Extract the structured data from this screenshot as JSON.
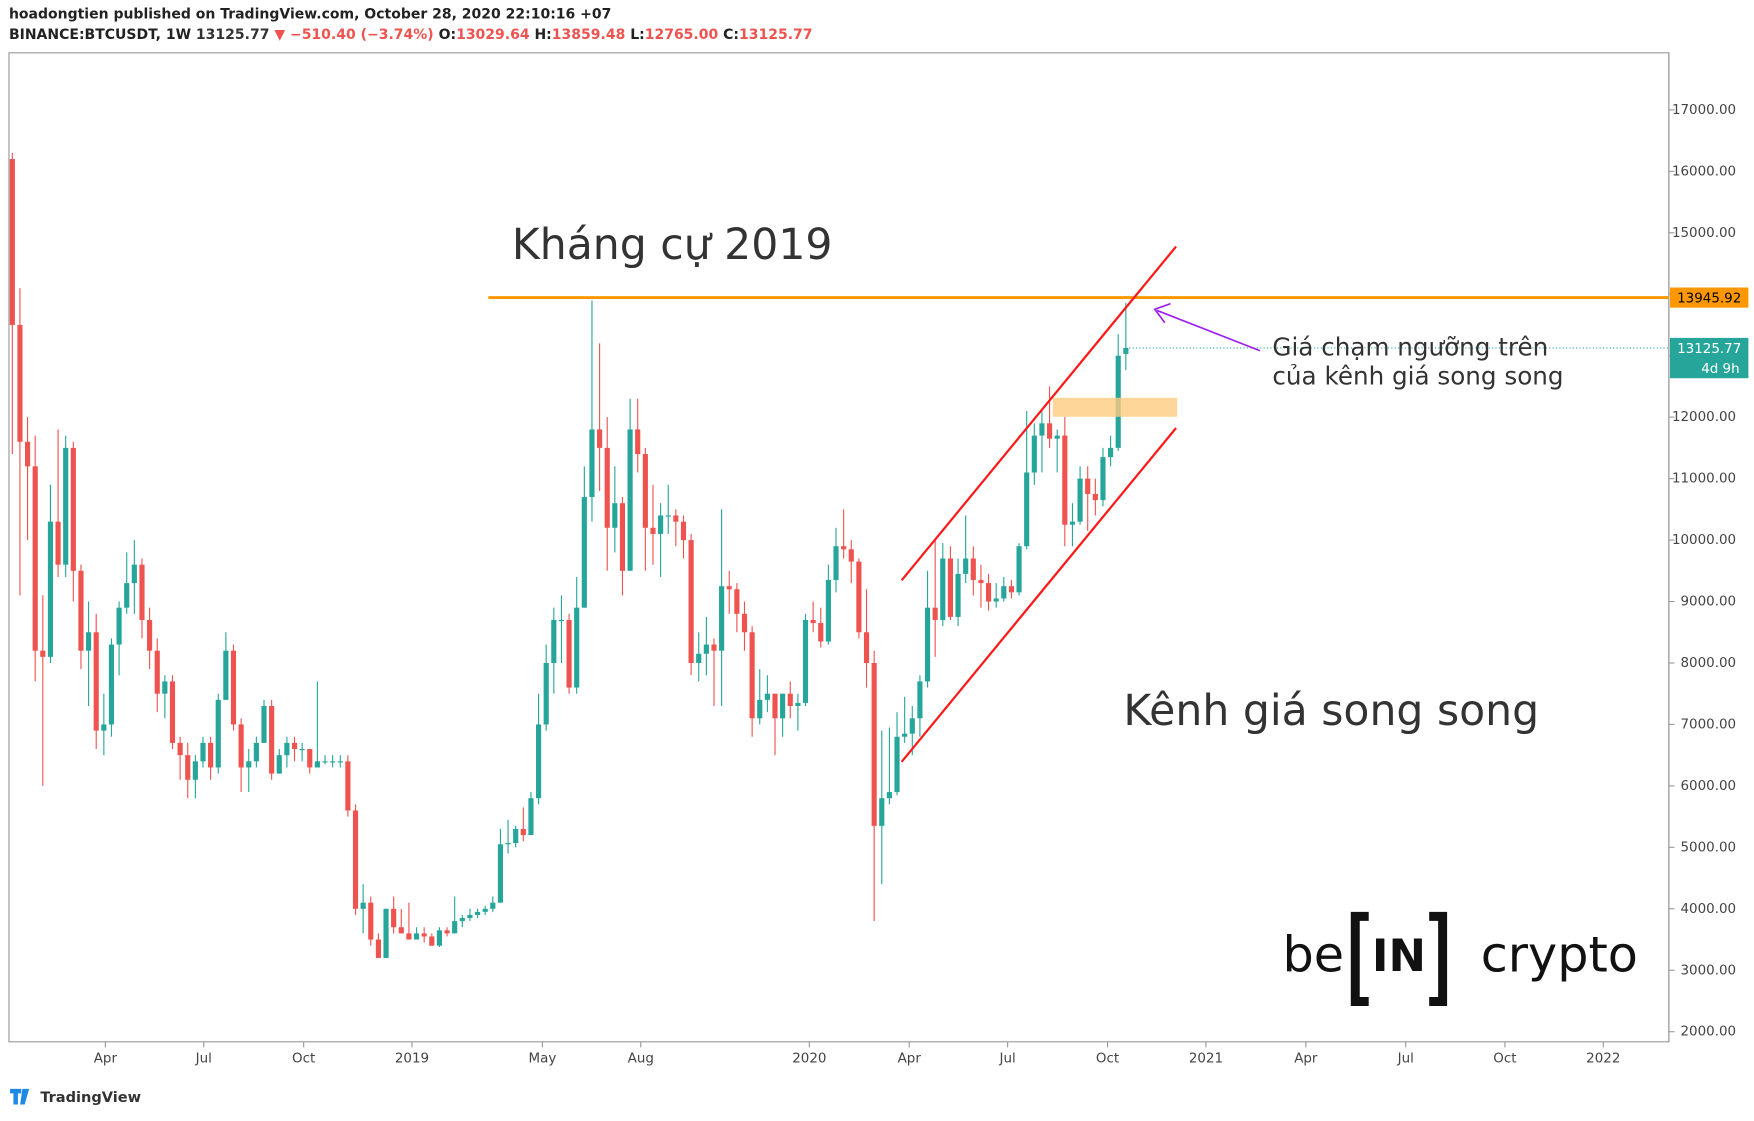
{
  "header": {
    "title": "hoadongtien published on TradingView.com, October 28, 2020 22:10:16 +07",
    "symbol": "BINANCE:BTCUSDT, 1W",
    "price": "13125.77",
    "arrow": "▼",
    "change": "−510.40 (−3.74%)",
    "open_label": "O:",
    "open": "13029.64",
    "high_label": "H:",
    "high": "13859.48",
    "low_label": "L:",
    "low": "12765.00",
    "close_label": "C:",
    "close": "13125.77"
  },
  "chart_data": {
    "type": "candlestick",
    "up_color": "#26a69a",
    "down_color": "#ef5350",
    "ylim": [
      1836,
      17929
    ],
    "yticks": [
      {
        "value": 2000,
        "label": "2000.00"
      },
      {
        "value": 3000,
        "label": "3000.00"
      },
      {
        "value": 4000,
        "label": "4000.00"
      },
      {
        "value": 5000,
        "label": "5000.00"
      },
      {
        "value": 6000,
        "label": "6000.00"
      },
      {
        "value": 7000,
        "label": "7000.00"
      },
      {
        "value": 8000,
        "label": "8000.00"
      },
      {
        "value": 9000,
        "label": "9000.00"
      },
      {
        "value": 10000,
        "label": "10000.00"
      },
      {
        "value": 11000,
        "label": "11000.00"
      },
      {
        "value": 12000,
        "label": "12000.00"
      },
      {
        "value": 13000,
        "label": "13000.00"
      },
      {
        "value": 14000,
        "label": "14000.00"
      },
      {
        "value": 15000,
        "label": "15000.00"
      },
      {
        "value": 16000,
        "label": "16000.00"
      },
      {
        "value": 17000,
        "label": "17000.00"
      }
    ],
    "xlim": [
      -0.44,
      217.2
    ],
    "xticks": [
      {
        "value": 12.2,
        "label": "Apr"
      },
      {
        "value": 25.1,
        "label": "Jul"
      },
      {
        "value": 38.2,
        "label": "Oct"
      },
      {
        "value": 52.4,
        "label": "2019"
      },
      {
        "value": 69.5,
        "label": "May"
      },
      {
        "value": 82.4,
        "label": "Aug"
      },
      {
        "value": 104.5,
        "label": "2020"
      },
      {
        "value": 117.6,
        "label": "Apr"
      },
      {
        "value": 130.5,
        "label": "Jul"
      },
      {
        "value": 143.6,
        "label": "Oct"
      },
      {
        "value": 156.5,
        "label": "2021"
      },
      {
        "value": 169.6,
        "label": "Apr"
      },
      {
        "value": 182.7,
        "label": "Jul"
      },
      {
        "value": 195.7,
        "label": "Oct"
      },
      {
        "value": 208.6,
        "label": "2022"
      }
    ],
    "candles": [
      [
        16200,
        16300,
        11400,
        13500
      ],
      [
        13500,
        14100,
        9100,
        11600
      ],
      [
        11600,
        12000,
        10000,
        11200
      ],
      [
        11200,
        11700,
        7700,
        8200
      ],
      [
        8200,
        9100,
        6000,
        8100
      ],
      [
        8100,
        10900,
        8000,
        10300
      ],
      [
        10300,
        11800,
        9400,
        9600
      ],
      [
        9600,
        11700,
        9400,
        11500
      ],
      [
        11500,
        11600,
        9000,
        9500
      ],
      [
        9500,
        9600,
        7900,
        8200
      ],
      [
        8200,
        9000,
        7300,
        8500
      ],
      [
        8500,
        8800,
        6600,
        6900
      ],
      [
        6900,
        7500,
        6500,
        7000
      ],
      [
        7000,
        8400,
        6800,
        8300
      ],
      [
        8300,
        9000,
        7800,
        8900
      ],
      [
        8900,
        9800,
        8800,
        9300
      ],
      [
        9300,
        10000,
        8800,
        9600
      ],
      [
        9600,
        9700,
        8400,
        8700
      ],
      [
        8700,
        8900,
        7900,
        8200
      ],
      [
        8200,
        8400,
        7200,
        7500
      ],
      [
        7500,
        7800,
        7100,
        7700
      ],
      [
        7700,
        7800,
        6600,
        6700
      ],
      [
        6700,
        6800,
        6100,
        6500
      ],
      [
        6500,
        6700,
        5800,
        6100
      ],
      [
        6100,
        6500,
        5800,
        6400
      ],
      [
        6400,
        6800,
        6300,
        6700
      ],
      [
        6700,
        6800,
        6100,
        6300
      ],
      [
        6300,
        7500,
        6200,
        7400
      ],
      [
        7400,
        8500,
        7400,
        8200
      ],
      [
        8200,
        8300,
        6900,
        7000
      ],
      [
        7000,
        7100,
        5900,
        6300
      ],
      [
        6300,
        6600,
        5900,
        6400
      ],
      [
        6400,
        6800,
        6300,
        6700
      ],
      [
        6700,
        7400,
        6700,
        7300
      ],
      [
        7300,
        7400,
        6100,
        6200
      ],
      [
        6200,
        6600,
        6200,
        6500
      ],
      [
        6500,
        6800,
        6300,
        6700
      ],
      [
        6700,
        6800,
        6400,
        6600
      ],
      [
        6600,
        6700,
        6400,
        6600
      ],
      [
        6600,
        6600,
        6200,
        6300
      ],
      [
        6300,
        7700,
        6300,
        6400
      ],
      [
        6400,
        6500,
        6350,
        6400
      ],
      [
        6400,
        6500,
        6300,
        6400
      ],
      [
        6400,
        6500,
        6300,
        6400
      ],
      [
        6400,
        6500,
        5500,
        5600
      ],
      [
        5600,
        5700,
        3900,
        4000
      ],
      [
        4000,
        4400,
        3600,
        4100
      ],
      [
        4100,
        4200,
        3400,
        3500
      ],
      [
        3500,
        3600,
        3200,
        3200
      ],
      [
        3200,
        4000,
        3200,
        4000
      ],
      [
        4000,
        4200,
        3600,
        3700
      ],
      [
        3700,
        4000,
        3600,
        3600
      ],
      [
        3600,
        4100,
        3500,
        3500
      ],
      [
        3500,
        3700,
        3500,
        3600
      ],
      [
        3600,
        3700,
        3450,
        3550
      ],
      [
        3550,
        3600,
        3400,
        3400
      ],
      [
        3400,
        3700,
        3380,
        3650
      ],
      [
        3650,
        3700,
        3550,
        3600
      ],
      [
        3600,
        4200,
        3600,
        3800
      ],
      [
        3800,
        3900,
        3700,
        3850
      ],
      [
        3850,
        4000,
        3800,
        3900
      ],
      [
        3900,
        4000,
        3850,
        3950
      ],
      [
        3950,
        4050,
        3900,
        4000
      ],
      [
        4000,
        4200,
        3950,
        4100
      ],
      [
        4100,
        5300,
        4100,
        5050
      ],
      [
        5050,
        5450,
        4900,
        5070
      ],
      [
        5070,
        5350,
        5000,
        5300
      ],
      [
        5300,
        5650,
        5100,
        5200
      ],
      [
        5200,
        5900,
        5200,
        5800
      ],
      [
        5800,
        7500,
        5700,
        7000
      ],
      [
        7000,
        8300,
        6900,
        8000
      ],
      [
        8000,
        8900,
        7500,
        8700
      ],
      [
        8700,
        9100,
        8000,
        8700
      ],
      [
        8700,
        8800,
        7500,
        7600
      ],
      [
        7600,
        9400,
        7500,
        8900
      ],
      [
        8900,
        11200,
        8900,
        10700
      ],
      [
        10700,
        13900,
        10300,
        11800
      ],
      [
        11800,
        13200,
        10800,
        11500
      ],
      [
        11500,
        12000,
        9500,
        10200
      ],
      [
        10200,
        11200,
        9800,
        10600
      ],
      [
        10600,
        10700,
        9100,
        9500
      ],
      [
        9500,
        12300,
        9500,
        11800
      ],
      [
        11800,
        12300,
        11100,
        11400
      ],
      [
        11400,
        11500,
        9500,
        10200
      ],
      [
        10200,
        10900,
        9600,
        10100
      ],
      [
        10100,
        10600,
        9400,
        10400
      ],
      [
        10400,
        10900,
        10100,
        10400
      ],
      [
        10400,
        10500,
        9900,
        10300
      ],
      [
        10300,
        10400,
        9700,
        10000
      ],
      [
        10000,
        10100,
        7800,
        8000
      ],
      [
        8000,
        8500,
        7700,
        8150
      ],
      [
        8150,
        8750,
        7800,
        8300
      ],
      [
        8300,
        8400,
        7300,
        8200
      ],
      [
        8200,
        10500,
        7300,
        9250
      ],
      [
        9250,
        9500,
        8800,
        9200
      ],
      [
        9200,
        9300,
        8500,
        8800
      ],
      [
        8800,
        9000,
        8200,
        8500
      ],
      [
        8500,
        8600,
        6800,
        7100
      ],
      [
        7100,
        7900,
        7000,
        7400
      ],
      [
        7400,
        7800,
        7200,
        7500
      ],
      [
        7500,
        7500,
        6500,
        7100
      ],
      [
        7100,
        7500,
        6800,
        7500
      ],
      [
        7500,
        7700,
        7100,
        7300
      ],
      [
        7300,
        7500,
        6900,
        7350
      ],
      [
        7350,
        8800,
        7300,
        8700
      ],
      [
        8700,
        9000,
        8500,
        8650
      ],
      [
        8650,
        8900,
        8250,
        8350
      ],
      [
        8350,
        9600,
        8300,
        9350
      ],
      [
        9350,
        10200,
        9150,
        9900
      ],
      [
        9900,
        10500,
        9700,
        9850
      ],
      [
        9850,
        10000,
        9300,
        9650
      ],
      [
        9650,
        9700,
        8400,
        8500
      ],
      [
        8500,
        9200,
        7600,
        8000
      ],
      [
        8000,
        8200,
        3800,
        5350
      ],
      [
        5350,
        6900,
        4400,
        5800
      ],
      [
        5800,
        6950,
        5700,
        5900
      ],
      [
        5900,
        7200,
        5850,
        6800
      ],
      [
        6800,
        7450,
        6700,
        6850
      ],
      [
        6850,
        7300,
        6500,
        7100
      ],
      [
        7100,
        7800,
        6800,
        7700
      ],
      [
        7700,
        9500,
        7600,
        8900
      ],
      [
        8900,
        10000,
        8100,
        8700
      ],
      [
        8700,
        9950,
        8600,
        9700
      ],
      [
        9700,
        9900,
        8700,
        8750
      ],
      [
        8750,
        9700,
        8600,
        9450
      ],
      [
        9450,
        10400,
        9300,
        9700
      ],
      [
        9700,
        9900,
        9100,
        9350
      ],
      [
        9350,
        9600,
        8900,
        9300
      ],
      [
        9300,
        9450,
        8850,
        9000
      ],
      [
        9000,
        9300,
        8900,
        9050
      ],
      [
        9050,
        9400,
        9000,
        9250
      ],
      [
        9250,
        9350,
        9050,
        9150
      ],
      [
        9150,
        9950,
        9100,
        9900
      ],
      [
        9900,
        12100,
        9850,
        11100
      ],
      [
        11100,
        11900,
        10900,
        11700
      ],
      [
        11700,
        12100,
        11100,
        11900
      ],
      [
        11900,
        12500,
        11500,
        11650
      ],
      [
        11650,
        11800,
        11100,
        11700
      ],
      [
        11700,
        12000,
        9900,
        10250
      ],
      [
        10250,
        10600,
        9900,
        10300
      ],
      [
        10300,
        11200,
        10250,
        11000
      ],
      [
        11000,
        11200,
        10150,
        10750
      ],
      [
        10750,
        11000,
        10400,
        10650
      ],
      [
        10650,
        11500,
        10550,
        11350
      ],
      [
        11350,
        11700,
        11200,
        11500
      ],
      [
        11500,
        13350,
        11450,
        13000
      ],
      [
        13029.64,
        13859.48,
        12765.0,
        13125.77
      ]
    ],
    "resistance": {
      "value": 13945.92,
      "label": "13945.92",
      "color": "#ff9800"
    },
    "last_price": {
      "value": 13125.77,
      "label": "13125.77"
    },
    "countdown": "4d 9h",
    "annotations": {
      "resistance_label": "Kháng cự 2019",
      "note_line1": "Giá chạm ngưỡng trên",
      "note_line2": "của kênh giá song song",
      "channel_label": "Kênh giá song song"
    }
  },
  "logo": {
    "left": "be",
    "mid": "IN",
    "right": "crypto"
  },
  "footer": "TradingView"
}
